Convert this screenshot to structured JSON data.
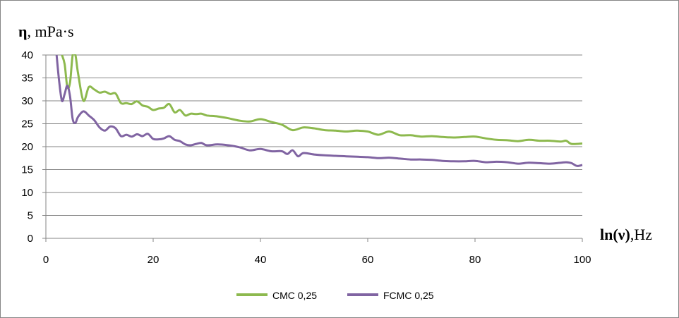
{
  "chart_data": {
    "type": "line",
    "ylabel_symbol": "η",
    "ylabel_unit": ", mPa·s",
    "xlabel_symbol": "ln(ν)",
    "xlabel_unit": ",Hz",
    "xlim": [
      0,
      100
    ],
    "ylim": [
      0,
      40
    ],
    "xticks": [
      0,
      20,
      40,
      60,
      80,
      100
    ],
    "yticks": [
      0,
      5,
      10,
      15,
      20,
      25,
      30,
      35,
      40
    ],
    "grid": "horizontal",
    "legend_position": "bottom",
    "series": [
      {
        "name": "CMC 0,25",
        "color": "#8db94e",
        "x": [
          3,
          3.5,
          4,
          4.5,
          5,
          5.5,
          6,
          7,
          8,
          9,
          10,
          11,
          12,
          13,
          14,
          15,
          16,
          17,
          18,
          19,
          20,
          21,
          22,
          23,
          24,
          25,
          26,
          27,
          28,
          29,
          30,
          32,
          34,
          36,
          38,
          40,
          42,
          44,
          46,
          48,
          50,
          52,
          54,
          56,
          58,
          60,
          62,
          64,
          66,
          68,
          70,
          72,
          74,
          76,
          78,
          80,
          82,
          84,
          86,
          88,
          90,
          92,
          94,
          96,
          97,
          98,
          100
        ],
        "values": [
          40,
          38,
          33,
          34,
          40,
          40,
          36,
          30,
          33,
          32.5,
          31.8,
          32,
          31.5,
          31.6,
          29.5,
          29.5,
          29.3,
          29.9,
          29,
          28.7,
          28,
          28.3,
          28.5,
          29.3,
          27.5,
          28,
          26.8,
          27.2,
          27.1,
          27.2,
          26.8,
          26.6,
          26.2,
          25.7,
          25.5,
          26,
          25.4,
          24.8,
          23.6,
          24.2,
          24,
          23.6,
          23.5,
          23.3,
          23.5,
          23.3,
          22.6,
          23.3,
          22.5,
          22.5,
          22.2,
          22.3,
          22.1,
          22,
          22.1,
          22.2,
          21.8,
          21.5,
          21.4,
          21.2,
          21.5,
          21.3,
          21.3,
          21.1,
          21.3,
          20.6,
          20.7
        ]
      },
      {
        "name": "FCMC 0,25",
        "color": "#8064a2",
        "x": [
          2,
          2.5,
          3,
          3.5,
          4,
          4.5,
          5,
          5.5,
          6,
          7,
          8,
          9,
          10,
          11,
          12,
          13,
          14,
          15,
          16,
          17,
          18,
          19,
          20,
          21,
          22,
          23,
          24,
          25,
          26,
          27,
          28,
          29,
          30,
          32,
          34,
          36,
          38,
          40,
          42,
          44,
          45,
          46,
          47,
          48,
          50,
          52,
          54,
          56,
          58,
          60,
          62,
          64,
          66,
          68,
          70,
          72,
          74,
          76,
          78,
          80,
          82,
          84,
          86,
          88,
          90,
          92,
          94,
          96,
          97,
          98,
          99,
          100
        ],
        "values": [
          40,
          34,
          30,
          31.5,
          33.3,
          31,
          26,
          25.2,
          26.5,
          27.7,
          26.8,
          25.8,
          24.2,
          23.5,
          24.4,
          24,
          22.3,
          22.6,
          22.2,
          22.7,
          22.3,
          22.8,
          21.7,
          21.6,
          21.8,
          22.3,
          21.5,
          21.2,
          20.5,
          20.3,
          20.6,
          20.8,
          20.3,
          20.5,
          20.3,
          19.9,
          19.2,
          19.5,
          19,
          19,
          18.4,
          19.2,
          17.9,
          18.6,
          18.3,
          18.1,
          18,
          17.9,
          17.8,
          17.7,
          17.5,
          17.6,
          17.4,
          17.2,
          17.2,
          17.1,
          16.9,
          16.8,
          16.8,
          16.9,
          16.6,
          16.7,
          16.6,
          16.3,
          16.5,
          16.4,
          16.3,
          16.5,
          16.6,
          16.4,
          15.8,
          16
        ]
      }
    ]
  }
}
